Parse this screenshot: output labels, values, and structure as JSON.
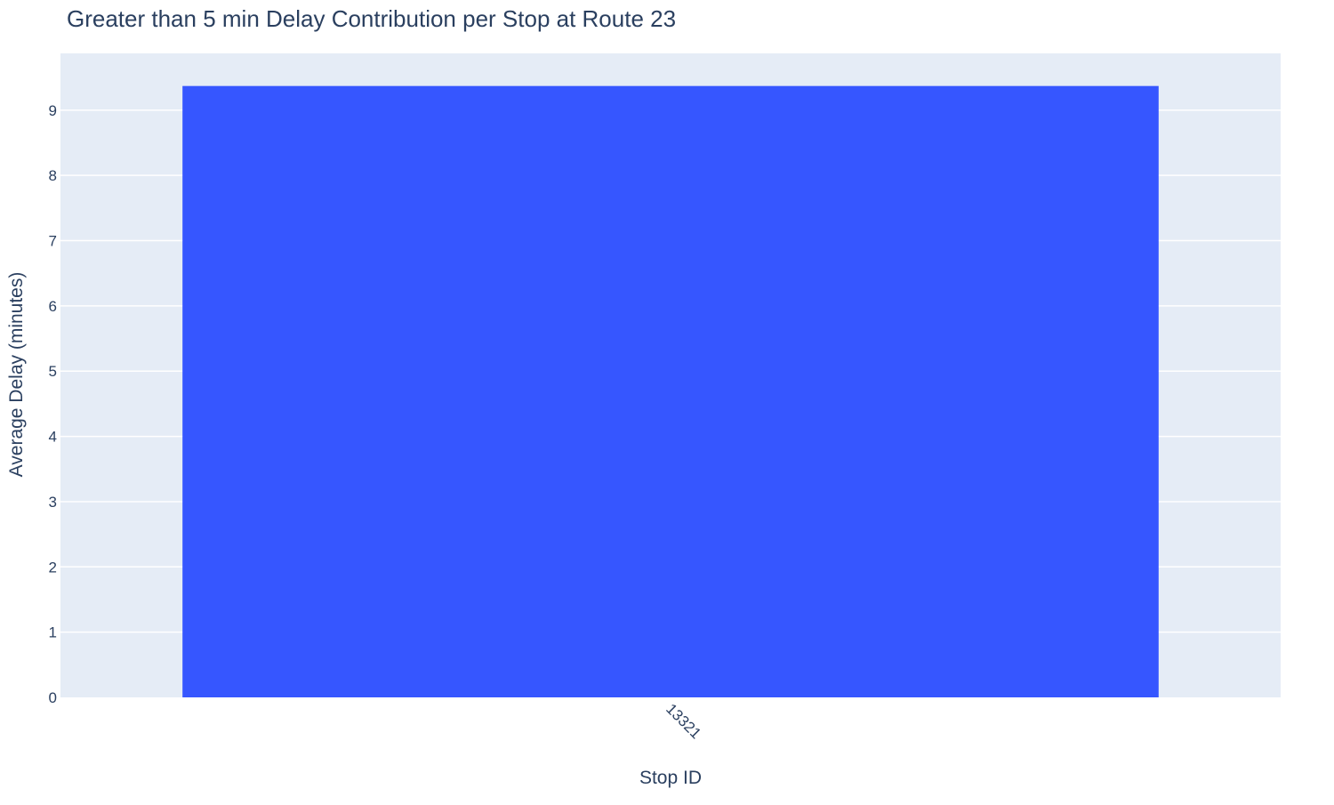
{
  "chart_data": {
    "type": "bar",
    "title": "Greater than 5 min Delay Contribution per Stop at Route 23",
    "xlabel": "Stop ID",
    "ylabel": "Average Delay (minutes)",
    "categories": [
      "13321"
    ],
    "values": [
      9.37
    ],
    "ylim": [
      0,
      9.87
    ],
    "yticks": [
      0,
      1,
      2,
      3,
      4,
      5,
      6,
      7,
      8,
      9
    ],
    "grid": true,
    "legend": "none",
    "colors": {
      "bar": "#3656ff",
      "plot_background": "#e5ecf6",
      "grid": "#ffffff",
      "text": "#2a3f5f"
    }
  }
}
